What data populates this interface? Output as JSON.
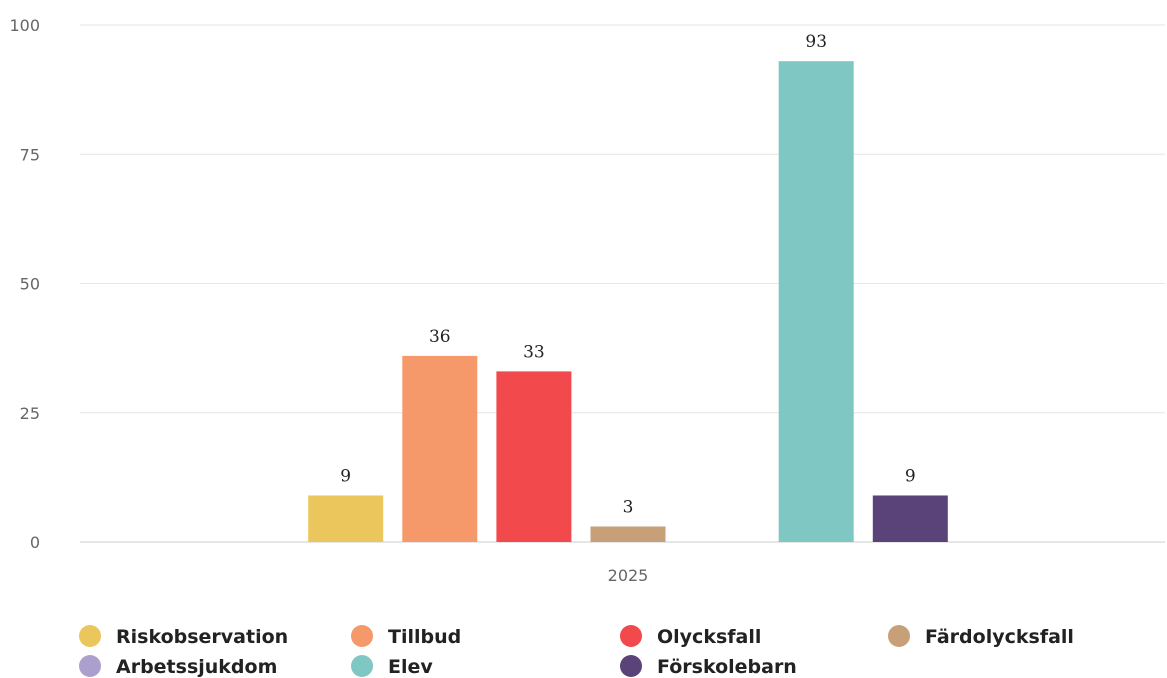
{
  "chart_data": {
    "type": "bar",
    "title": "",
    "xlabel": "",
    "ylabel": "",
    "categories": [
      "2025"
    ],
    "ylim": [
      0,
      100
    ],
    "yticks": [
      0,
      25,
      50,
      75,
      100
    ],
    "grid": true,
    "legend_position": "bottom",
    "data_labels": true,
    "series": [
      {
        "name": "Riskobservation",
        "values": [
          9
        ],
        "color": "#EBC65C"
      },
      {
        "name": "Tillbud",
        "values": [
          36
        ],
        "color": "#F5986A"
      },
      {
        "name": "Olycksfall",
        "values": [
          33
        ],
        "color": "#F24A4C"
      },
      {
        "name": "Färdolycksfall",
        "values": [
          3
        ],
        "color": "#C7A07A"
      },
      {
        "name": "Arbetssjukdom",
        "values": [
          0
        ],
        "color": "#ABA0CD"
      },
      {
        "name": "Elev",
        "values": [
          93
        ],
        "color": "#7EC7C2"
      },
      {
        "name": "Förskolebarn",
        "values": [
          9
        ],
        "color": "#5A4378"
      }
    ]
  }
}
